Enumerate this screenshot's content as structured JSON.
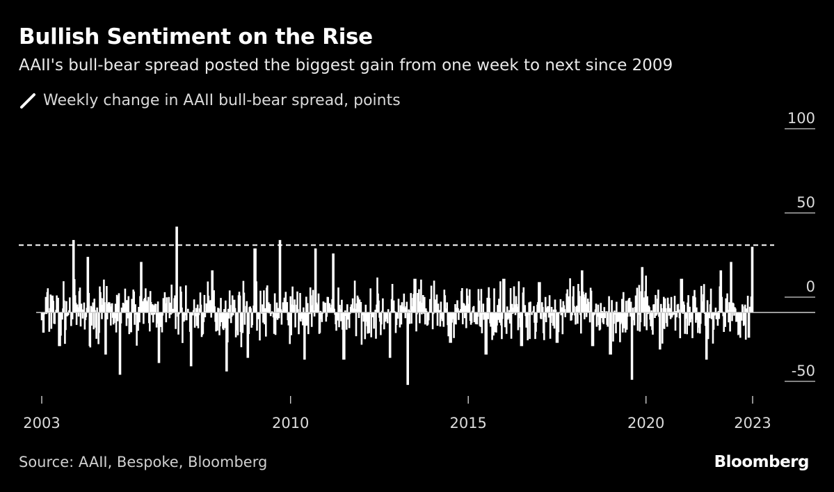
{
  "title": "Bullish Sentiment on the Rise",
  "subtitle": "AAII's bull-bear spread posted the biggest gain from one week to next since 2009",
  "source": "Source: AAII, Bespoke, Bloomberg",
  "brand": "Bloomberg",
  "colors": {
    "background": "#000000",
    "series": "#ffffff",
    "text": "#ffffff"
  },
  "chart_data": {
    "type": "bar",
    "series": [
      {
        "name": "Weekly change in AAII bull-bear spread, points",
        "note": "",
        "approximate_points": [
          {
            "x": 2003.05,
            "y": -12
          },
          {
            "x": 2003.3,
            "y": 10
          },
          {
            "x": 2003.5,
            "y": -20
          },
          {
            "x": 2003.9,
            "y": 43
          },
          {
            "x": 2004.3,
            "y": 33
          },
          {
            "x": 2004.8,
            "y": -25
          },
          {
            "x": 2005.2,
            "y": -37
          },
          {
            "x": 2005.8,
            "y": 30
          },
          {
            "x": 2006.3,
            "y": -30
          },
          {
            "x": 2006.8,
            "y": 51
          },
          {
            "x": 2007.2,
            "y": -32
          },
          {
            "x": 2007.8,
            "y": 25
          },
          {
            "x": 2008.2,
            "y": -35
          },
          {
            "x": 2008.8,
            "y": -27
          },
          {
            "x": 2009.0,
            "y": 38
          },
          {
            "x": 2009.7,
            "y": 43
          },
          {
            "x": 2010.4,
            "y": -28
          },
          {
            "x": 2010.7,
            "y": 38
          },
          {
            "x": 2011.2,
            "y": 35
          },
          {
            "x": 2011.5,
            "y": -28
          },
          {
            "x": 2012.8,
            "y": -27
          },
          {
            "x": 2013.3,
            "y": -43
          },
          {
            "x": 2013.5,
            "y": 20
          },
          {
            "x": 2014.5,
            "y": -18
          },
          {
            "x": 2015.5,
            "y": -25
          },
          {
            "x": 2016.0,
            "y": 20
          },
          {
            "x": 2016.5,
            "y": -20
          },
          {
            "x": 2017.0,
            "y": 18
          },
          {
            "x": 2017.5,
            "y": -18
          },
          {
            "x": 2018.2,
            "y": 25
          },
          {
            "x": 2018.5,
            "y": -20
          },
          {
            "x": 2019.0,
            "y": -25
          },
          {
            "x": 2019.6,
            "y": -40
          },
          {
            "x": 2019.9,
            "y": 27
          },
          {
            "x": 2020.4,
            "y": -22
          },
          {
            "x": 2021.0,
            "y": 20
          },
          {
            "x": 2021.7,
            "y": -28
          },
          {
            "x": 2022.1,
            "y": 25
          },
          {
            "x": 2022.4,
            "y": 30
          },
          {
            "x": 2022.9,
            "y": -15
          },
          {
            "x": 2023.0,
            "y": 39
          }
        ]
      }
    ],
    "reference_line": {
      "y": 40,
      "style": "dashed"
    },
    "xlim": [
      2003,
      2023
    ],
    "ylim": [
      -50,
      100
    ],
    "x_ticks": [
      2003,
      2010,
      2015,
      2020,
      2023
    ],
    "y_ticks": [
      100,
      50,
      0,
      -50
    ],
    "y_tick_labels": [
      "100",
      "50",
      "0",
      "-50"
    ],
    "grid": false,
    "legend": "top-left"
  }
}
